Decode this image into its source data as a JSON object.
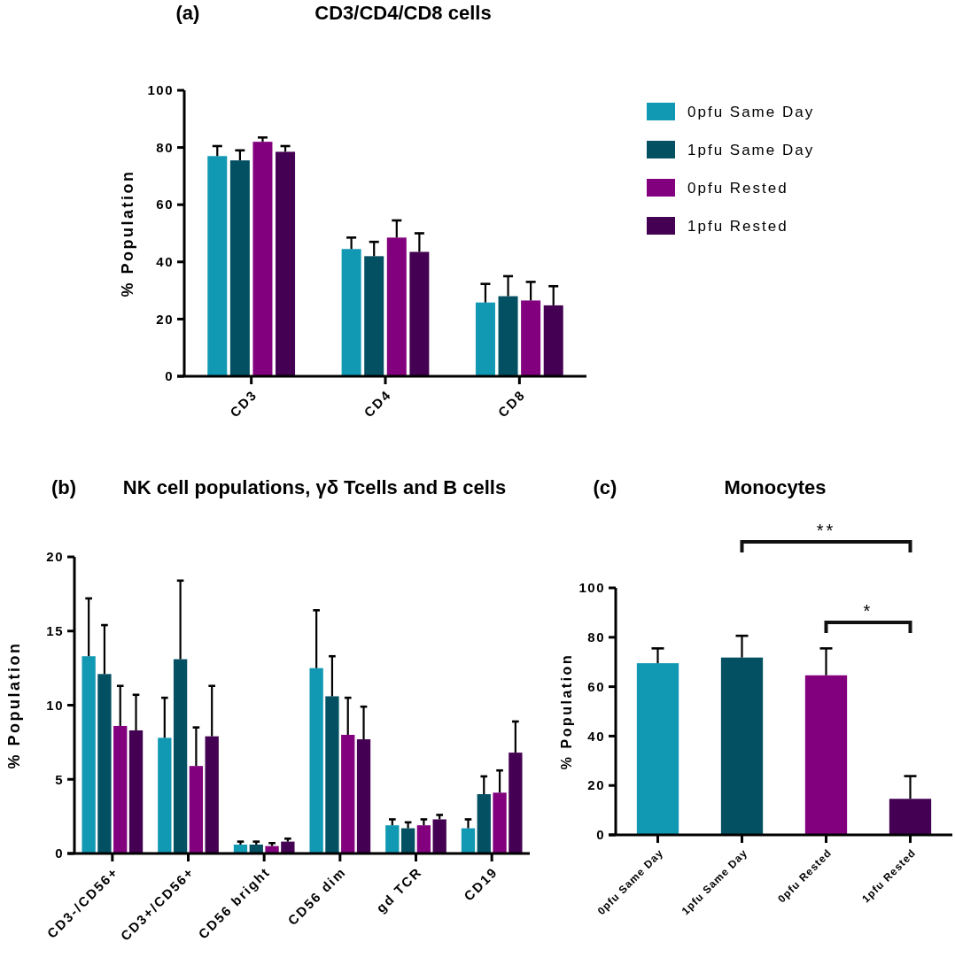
{
  "chart_data": [
    {
      "type": "bar",
      "title": "CD3/CD4/CD8 cells",
      "ylabel": "% Population",
      "annotations": [
        "(a)"
      ],
      "categories": [
        "CD3",
        "CD4",
        "CD8"
      ],
      "ylim": [
        0,
        100
      ],
      "yticks": [
        0,
        20,
        40,
        60,
        80,
        100
      ],
      "legend": "top right",
      "grid": false,
      "series": [
        {
          "name": "0pfu Same Day",
          "color": "#1199b4",
          "values": [
            77,
            44.5,
            25.8
          ],
          "errors": [
            [
              77,
              80.5
            ],
            [
              44.5,
              48.5
            ],
            [
              25.8,
              32.3
            ]
          ]
        },
        {
          "name": "1pfu Same Day",
          "color": "#045063",
          "values": [
            75.5,
            42,
            28
          ],
          "errors": [
            [
              75.5,
              79
            ],
            [
              42,
              47
            ],
            [
              28,
              35
            ]
          ]
        },
        {
          "name": "0pfu Rested",
          "color": "#82007d",
          "values": [
            82,
            48.5,
            26.5
          ],
          "errors": [
            [
              82,
              83.5
            ],
            [
              48.5,
              54.5
            ],
            [
              26.5,
              33
            ]
          ]
        },
        {
          "name": "1pfu Rested",
          "color": "#440052",
          "values": [
            78.5,
            43.5,
            24.8
          ],
          "errors": [
            [
              78.5,
              80.5
            ],
            [
              43.5,
              50
            ],
            [
              24.8,
              31.5
            ]
          ]
        }
      ]
    },
    {
      "type": "bar",
      "title": "NK cell populations, γδ Tcells and B cells",
      "ylabel": "% Population",
      "annotations": [
        "(b)"
      ],
      "categories": [
        "CD3-/CD56+",
        "CD3+/CD56+",
        "CD56 bright",
        "CD56 dim",
        "gd TCR",
        "CD19"
      ],
      "ylim": [
        0,
        20
      ],
      "yticks": [
        0,
        5,
        10,
        15,
        20
      ],
      "grid": false,
      "series": [
        {
          "color": "#1199b4",
          "values": [
            13.3,
            7.8,
            0.6,
            12.5,
            1.9,
            1.7
          ],
          "errors": [
            [
              13.3,
              17.2
            ],
            [
              7.8,
              10.5
            ],
            [
              0.6,
              0.8
            ],
            [
              12.5,
              16.4
            ],
            [
              1.9,
              2.3
            ],
            [
              1.7,
              2.3
            ]
          ]
        },
        {
          "color": "#045063",
          "values": [
            12.1,
            13.1,
            0.6,
            10.6,
            1.7,
            4
          ],
          "errors": [
            [
              12.1,
              15.4
            ],
            [
              13.1,
              18.4
            ],
            [
              0.6,
              0.8
            ],
            [
              10.6,
              13.3
            ],
            [
              1.7,
              2.1
            ],
            [
              4,
              5.2
            ]
          ]
        },
        {
          "color": "#82007d",
          "values": [
            8.6,
            5.9,
            0.5,
            8,
            1.9,
            4.1
          ],
          "errors": [
            [
              8.6,
              11.3
            ],
            [
              5.9,
              8.5
            ],
            [
              0.5,
              0.7
            ],
            [
              8,
              10.5
            ],
            [
              1.9,
              2.3
            ],
            [
              4.1,
              5.6
            ]
          ]
        },
        {
          "color": "#440052",
          "values": [
            8.3,
            7.9,
            0.8,
            7.7,
            2.3,
            6.8
          ],
          "errors": [
            [
              8.3,
              10.7
            ],
            [
              7.9,
              11.3
            ],
            [
              0.8,
              1
            ],
            [
              7.7,
              9.9
            ],
            [
              2.3,
              2.6
            ],
            [
              6.8,
              8.9
            ]
          ]
        }
      ]
    },
    {
      "type": "bar",
      "title": "Monocytes",
      "ylabel": "% Population",
      "annotations": [
        "(c)",
        "**",
        "*"
      ],
      "categories": [
        "0pfu Same Day",
        "1pfu Same Day",
        "0pfu Rested",
        "1pfu Rested"
      ],
      "ylim": [
        0,
        100
      ],
      "yticks": [
        0,
        20,
        40,
        60,
        80,
        100
      ],
      "grid": false,
      "values": [
        69.5,
        71.8,
        64.6,
        14.6
      ],
      "colors": [
        "#1199b4",
        "#045063",
        "#82007d",
        "#440052"
      ],
      "errors": [
        [
          69.5,
          75.5
        ],
        [
          71.8,
          80.6
        ],
        [
          64.6,
          75.5
        ],
        [
          14.6,
          23.8
        ]
      ]
    }
  ]
}
